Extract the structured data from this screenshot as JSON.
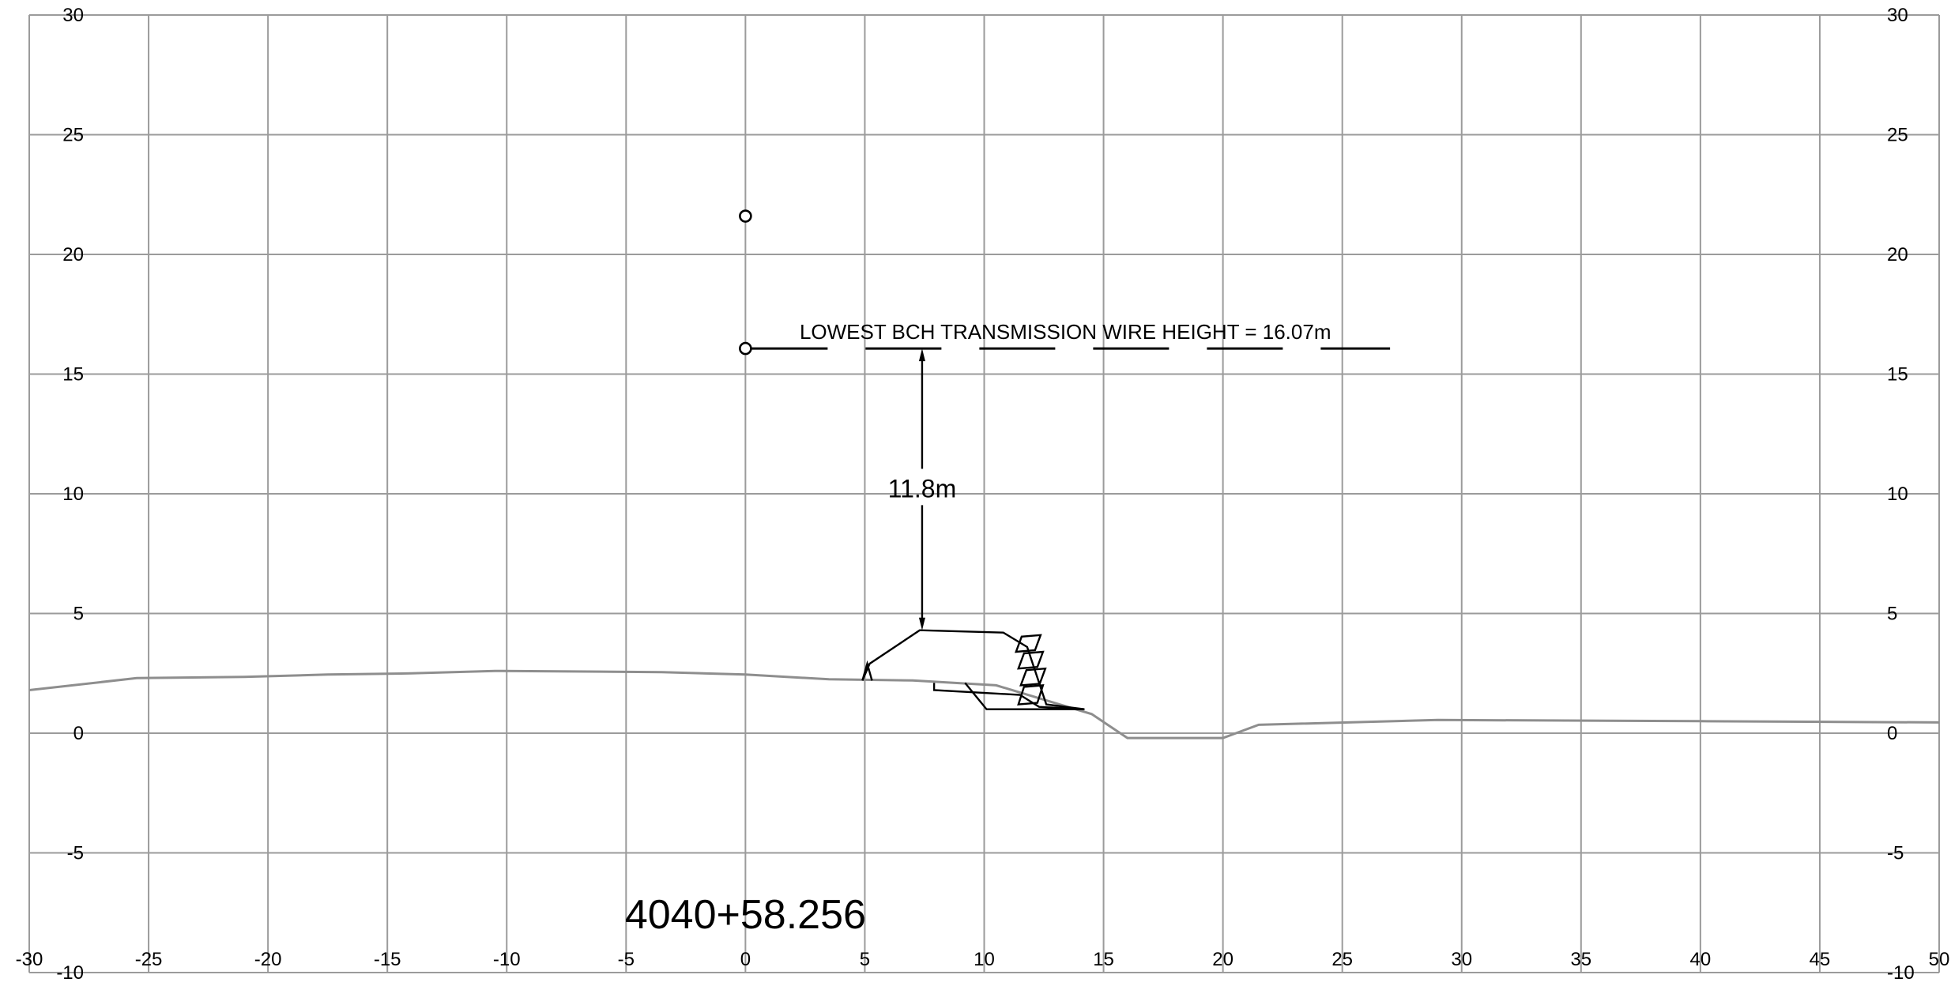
{
  "chart_data": {
    "type": "cross-section",
    "x_range": [
      -30,
      50
    ],
    "y_range": [
      -10,
      30
    ],
    "x_ticks": [
      -30,
      -25,
      -20,
      -15,
      -10,
      -5,
      0,
      5,
      10,
      15,
      20,
      25,
      30,
      35,
      40,
      45,
      50
    ],
    "y_ticks": [
      -10,
      -5,
      0,
      5,
      10,
      15,
      20,
      25,
      30
    ],
    "grid": true,
    "ground_profile": [
      [
        -30,
        1.8
      ],
      [
        -25.5,
        2.3
      ],
      [
        -21,
        2.35
      ],
      [
        -17.5,
        2.45
      ],
      [
        -14,
        2.5
      ],
      [
        -10.5,
        2.6
      ],
      [
        -3.5,
        2.55
      ],
      [
        0,
        2.45
      ],
      [
        3.5,
        2.25
      ],
      [
        7,
        2.2
      ],
      [
        10.5,
        2.0
      ],
      [
        12.5,
        1.4
      ],
      [
        14.5,
        0.8
      ],
      [
        16,
        -0.2
      ],
      [
        20,
        -0.2
      ],
      [
        21.5,
        0.35
      ],
      [
        29,
        0.55
      ],
      [
        40,
        0.5
      ],
      [
        50,
        0.45
      ]
    ],
    "structure_outline": [
      [
        4.9,
        2.2
      ],
      [
        5.2,
        2.9
      ],
      [
        7.3,
        4.3
      ],
      [
        10.8,
        4.2
      ],
      [
        11.8,
        3.6
      ],
      [
        12.6,
        1.2
      ],
      [
        14.2,
        1.0
      ]
    ],
    "lower_outline": [
      [
        7.9,
        2.1
      ],
      [
        7.9,
        1.8
      ],
      [
        11.5,
        1.6
      ],
      [
        12.3,
        1.1
      ],
      [
        14.2,
        1.0
      ]
    ],
    "left_curb": [
      [
        4.9,
        2.2
      ],
      [
        5.1,
        2.9
      ],
      [
        5.3,
        2.2
      ]
    ],
    "toe_line": [
      [
        9.2,
        2.1
      ],
      [
        10.1,
        1.0
      ],
      [
        14.2,
        1.0
      ]
    ],
    "wall_blocks": [
      {
        "bottom": [
          11.5,
          1.2
        ],
        "top": [
          11.8,
          2.0
        ]
      },
      {
        "bottom": [
          11.6,
          2.0
        ],
        "top": [
          11.9,
          2.7
        ]
      },
      {
        "bottom": [
          11.5,
          2.7
        ],
        "top": [
          11.8,
          3.4
        ]
      },
      {
        "bottom": [
          11.4,
          3.4
        ],
        "top": [
          11.7,
          4.1
        ]
      }
    ],
    "wire_markers": [
      {
        "x": 0,
        "y": 21.6
      },
      {
        "x": 0,
        "y": 16.07
      }
    ],
    "wire_height": 16.07,
    "wire_extent": [
      0,
      27
    ],
    "clearance_dimension": {
      "x": 7.4,
      "y_bottom": 4.3,
      "y_top": 16.07,
      "label": "11.8m"
    },
    "wire_label": "LOWEST BCH TRANSMISSION WIRE HEIGHT = 16.07m",
    "station_label": "4040+58.256"
  },
  "colors": {
    "grid": "#9b9b9b",
    "ground": "#8e8e8e",
    "ink": "#000000"
  }
}
